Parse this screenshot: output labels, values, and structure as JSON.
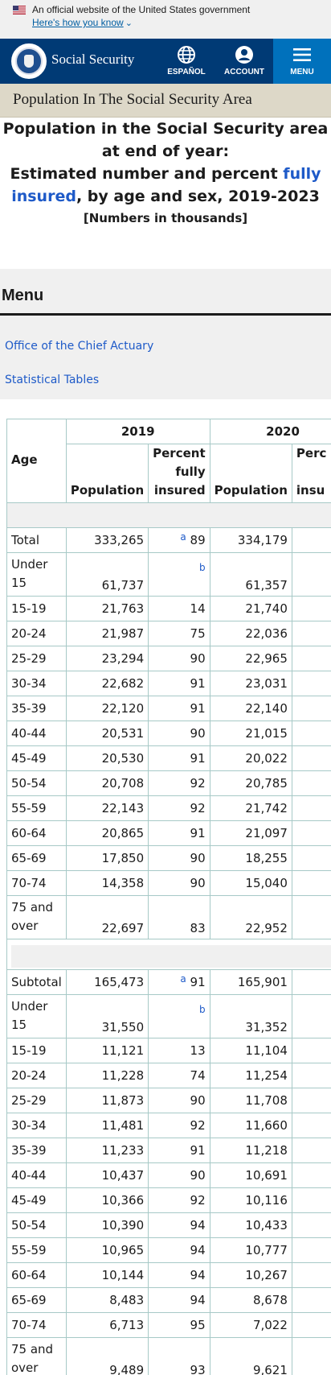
{
  "gov_banner": {
    "official_text": "An official website of the United States government",
    "how_link": "Here's how you know"
  },
  "header": {
    "brand": "Social Security",
    "espanol": "ESPAÑOL",
    "account": "ACCOUNT",
    "menu": "MENU"
  },
  "breadcrumb": "Population In The Social Security Area",
  "title": {
    "line1": "Population in the Social Security area",
    "line2": "at end of year:",
    "line3_pre": "Estimated number and percent ",
    "line3_link": "fully",
    "line4_link": "insured",
    "line4_post": ", by age and sex, 2019-2023",
    "note": "[Numbers in thousands]"
  },
  "menu": {
    "title": "Menu",
    "links": [
      "Office of the Chief Actuary",
      "Statistical Tables"
    ]
  },
  "table": {
    "years": [
      "2019",
      "2020"
    ],
    "age_header": "Age",
    "pop_header": "Population",
    "pct_header_l1": "Percent",
    "pct_header_l2": "fully",
    "pct_header_l3": "insured",
    "pct_header_cut_l1": "Perc",
    "pct_header_cut_l2": "f",
    "pct_header_cut_l3": "insu",
    "group1": [
      {
        "age": "Total",
        "pop2019": "333,265",
        "fn": "a",
        "pct2019": "89",
        "pop2020": "334,179"
      },
      {
        "age_l1": "Under",
        "age_l2": "15",
        "pop2019": "61,737",
        "fn": "b",
        "pct2019": "",
        "pop2020": "61,357"
      },
      {
        "age": "15-19",
        "pop2019": "21,763",
        "pct2019": "14",
        "pop2020": "21,740"
      },
      {
        "age": "20-24",
        "pop2019": "21,987",
        "pct2019": "75",
        "pop2020": "22,036"
      },
      {
        "age": "25-29",
        "pop2019": "23,294",
        "pct2019": "90",
        "pop2020": "22,965"
      },
      {
        "age": "30-34",
        "pop2019": "22,682",
        "pct2019": "91",
        "pop2020": "23,031"
      },
      {
        "age": "35-39",
        "pop2019": "22,120",
        "pct2019": "91",
        "pop2020": "22,140"
      },
      {
        "age": "40-44",
        "pop2019": "20,531",
        "pct2019": "90",
        "pop2020": "21,015"
      },
      {
        "age": "45-49",
        "pop2019": "20,530",
        "pct2019": "91",
        "pop2020": "20,022"
      },
      {
        "age": "50-54",
        "pop2019": "20,708",
        "pct2019": "92",
        "pop2020": "20,785"
      },
      {
        "age": "55-59",
        "pop2019": "22,143",
        "pct2019": "92",
        "pop2020": "21,742"
      },
      {
        "age": "60-64",
        "pop2019": "20,865",
        "pct2019": "91",
        "pop2020": "21,097"
      },
      {
        "age": "65-69",
        "pop2019": "17,850",
        "pct2019": "90",
        "pop2020": "18,255"
      },
      {
        "age": "70-74",
        "pop2019": "14,358",
        "pct2019": "90",
        "pop2020": "15,040"
      },
      {
        "age_l1": "75 and",
        "age_l2": "over",
        "pop2019": "22,697",
        "pct2019": "83",
        "pop2020": "22,952"
      }
    ],
    "group2": [
      {
        "age": "Subtotal",
        "pop2019": "165,473",
        "fn": "a",
        "pct2019": "91",
        "pop2020": "165,901"
      },
      {
        "age_l1": "Under",
        "age_l2": "15",
        "pop2019": "31,550",
        "fn": "b",
        "pct2019": "",
        "pop2020": "31,352"
      },
      {
        "age": "15-19",
        "pop2019": "11,121",
        "pct2019": "13",
        "pop2020": "11,104"
      },
      {
        "age": "20-24",
        "pop2019": "11,228",
        "pct2019": "74",
        "pop2020": "11,254"
      },
      {
        "age": "25-29",
        "pop2019": "11,873",
        "pct2019": "90",
        "pop2020": "11,708"
      },
      {
        "age": "30-34",
        "pop2019": "11,481",
        "pct2019": "92",
        "pop2020": "11,660"
      },
      {
        "age": "35-39",
        "pop2019": "11,233",
        "pct2019": "91",
        "pop2020": "11,218"
      },
      {
        "age": "40-44",
        "pop2019": "10,437",
        "pct2019": "90",
        "pop2020": "10,691"
      },
      {
        "age": "45-49",
        "pop2019": "10,366",
        "pct2019": "92",
        "pop2020": "10,116"
      },
      {
        "age": "50-54",
        "pop2019": "10,390",
        "pct2019": "94",
        "pop2020": "10,433"
      },
      {
        "age": "55-59",
        "pop2019": "10,965",
        "pct2019": "94",
        "pop2020": "10,777"
      },
      {
        "age": "60-64",
        "pop2019": "10,144",
        "pct2019": "94",
        "pop2020": "10,267"
      },
      {
        "age": "65-69",
        "pop2019": "8,483",
        "pct2019": "94",
        "pop2020": "8,678"
      },
      {
        "age": "70-74",
        "pop2019": "6,713",
        "pct2019": "95",
        "pop2020": "7,022"
      },
      {
        "age_l1": "75 and",
        "age_l2": "over",
        "pop2019": "9,489",
        "pct2019": "93",
        "pop2020": "9,621"
      }
    ]
  }
}
